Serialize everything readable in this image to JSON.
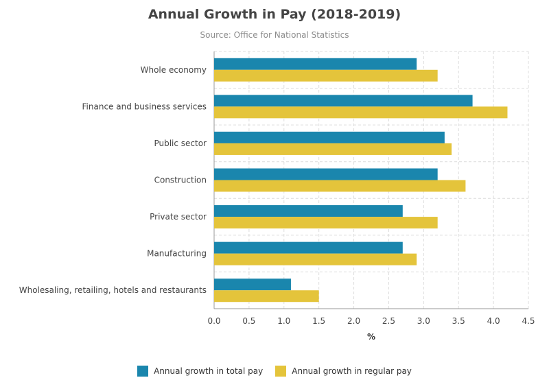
{
  "title": "Annual Growth in Pay (2018-2019)",
  "subtitle": "Source: Office for National Statistics",
  "colors": {
    "total": "#1a86ad",
    "regular": "#e4c43b",
    "grid": "#dcdcdc",
    "axis": "#999999",
    "text": "#444444"
  },
  "chart_data": {
    "type": "bar",
    "orientation": "horizontal",
    "title": "Annual Growth in Pay (2018-2019)",
    "subtitle": "Source: Office for National Statistics",
    "xlabel": "%",
    "ylabel": "",
    "xlim": [
      0,
      4.5
    ],
    "ticks": [
      "0.0",
      "0.5",
      "1.0",
      "1.5",
      "2.0",
      "2.5",
      "3.0",
      "3.5",
      "4.0",
      "4.5"
    ],
    "grid": true,
    "legend_position": "bottom",
    "categories": [
      "Whole economy",
      "Finance and business services",
      "Public sector",
      "Construction",
      "Private sector",
      "Manufacturing",
      "Wholesaling, retailing, hotels and restaurants"
    ],
    "series": [
      {
        "name": "Annual growth in total pay",
        "values": [
          2.9,
          3.7,
          3.3,
          3.2,
          2.7,
          2.7,
          1.1
        ]
      },
      {
        "name": "Annual growth in regular pay",
        "values": [
          3.2,
          4.2,
          3.4,
          3.6,
          3.2,
          2.9,
          1.5
        ]
      }
    ]
  }
}
